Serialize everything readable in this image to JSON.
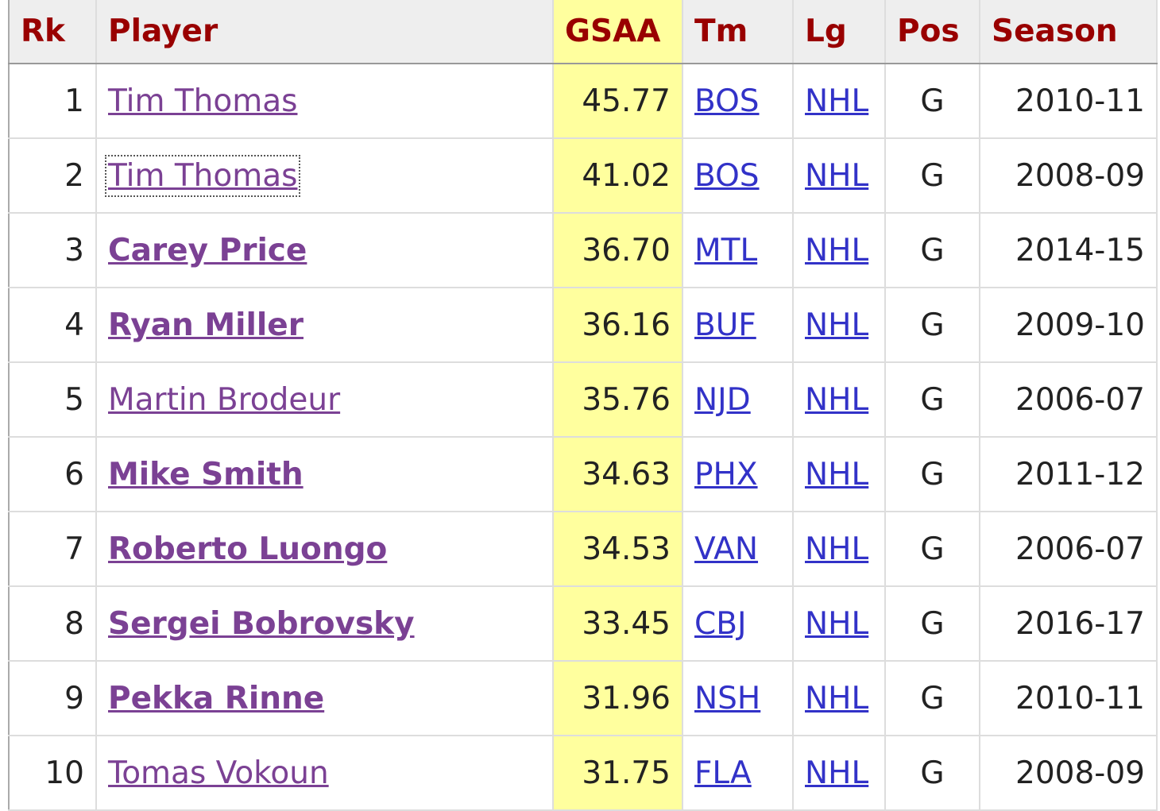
{
  "table": {
    "columns": [
      "Rk",
      "Player",
      "GSAA",
      "Tm",
      "Lg",
      "Pos",
      "Season"
    ],
    "rows": [
      {
        "rk": "1",
        "player": "Tim Thomas",
        "gsaa": "45.77",
        "tm": "BOS",
        "lg": "NHL",
        "pos": "G",
        "season": "2010-11",
        "bold": false
      },
      {
        "rk": "2",
        "player": "Tim Thomas",
        "gsaa": "41.02",
        "tm": "BOS",
        "lg": "NHL",
        "pos": "G",
        "season": "2008-09",
        "bold": false
      },
      {
        "rk": "3",
        "player": "Carey Price",
        "gsaa": "36.70",
        "tm": "MTL",
        "lg": "NHL",
        "pos": "G",
        "season": "2014-15",
        "bold": true
      },
      {
        "rk": "4",
        "player": "Ryan Miller",
        "gsaa": "36.16",
        "tm": "BUF",
        "lg": "NHL",
        "pos": "G",
        "season": "2009-10",
        "bold": true
      },
      {
        "rk": "5",
        "player": "Martin Brodeur",
        "gsaa": "35.76",
        "tm": "NJD",
        "lg": "NHL",
        "pos": "G",
        "season": "2006-07",
        "bold": false
      },
      {
        "rk": "6",
        "player": "Mike Smith",
        "gsaa": "34.63",
        "tm": "PHX",
        "lg": "NHL",
        "pos": "G",
        "season": "2011-12",
        "bold": true
      },
      {
        "rk": "7",
        "player": "Roberto Luongo",
        "gsaa": "34.53",
        "tm": "VAN",
        "lg": "NHL",
        "pos": "G",
        "season": "2006-07",
        "bold": true
      },
      {
        "rk": "8",
        "player": "Sergei Bobrovsky",
        "gsaa": "33.45",
        "tm": "CBJ",
        "lg": "NHL",
        "pos": "G",
        "season": "2016-17",
        "bold": true
      },
      {
        "rk": "9",
        "player": "Pekka Rinne",
        "gsaa": "31.96",
        "tm": "NSH",
        "lg": "NHL",
        "pos": "G",
        "season": "2010-11",
        "bold": true
      },
      {
        "rk": "10",
        "player": "Tomas Vokoun",
        "gsaa": "31.75",
        "tm": "FLA",
        "lg": "NHL",
        "pos": "G",
        "season": "2008-09",
        "bold": false
      }
    ]
  }
}
